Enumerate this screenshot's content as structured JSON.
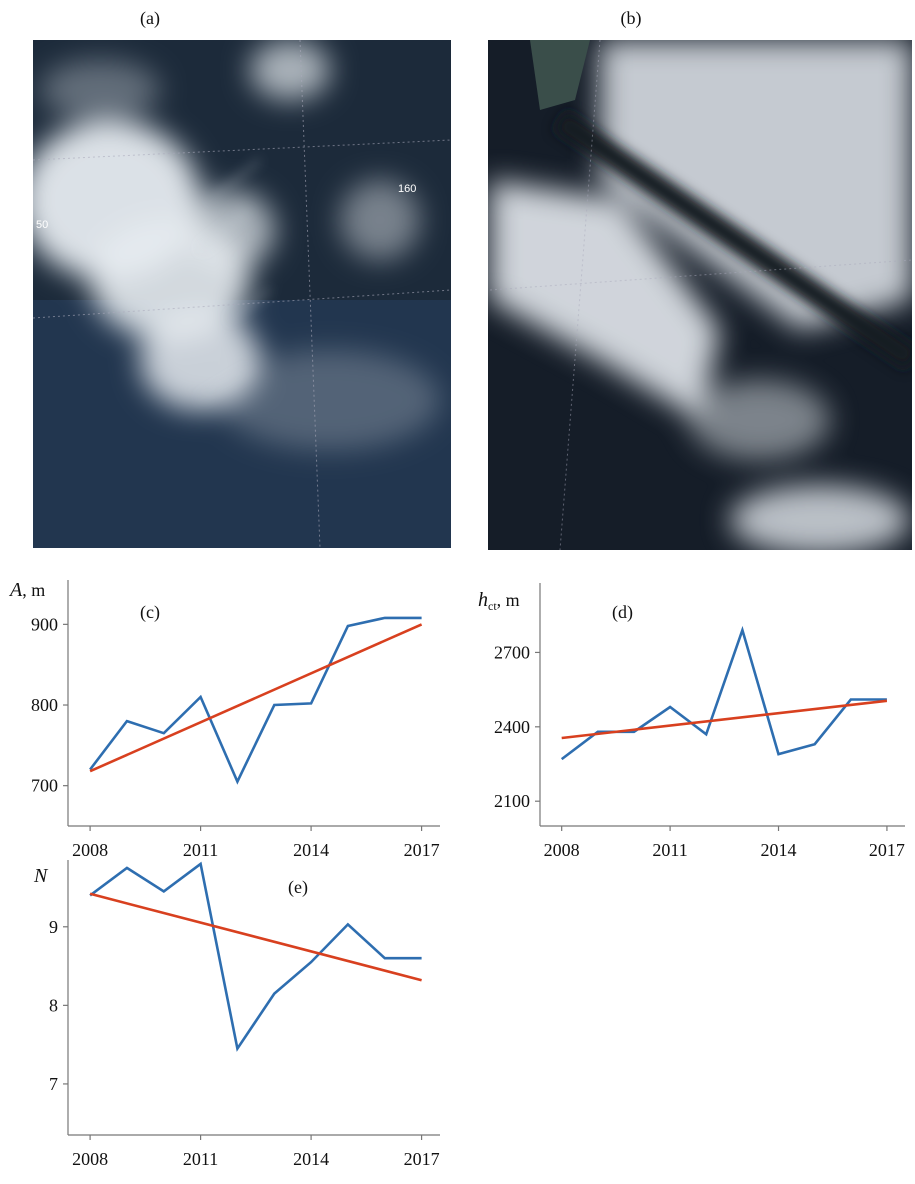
{
  "images": [
    {
      "label": "(a)",
      "annotations": [
        "50",
        "160"
      ]
    },
    {
      "label": "(b)"
    }
  ],
  "chart_data": [
    {
      "type": "line",
      "annotation": "(c)",
      "ylabel": {
        "symbol": "A",
        "unit": ", m"
      },
      "x": [
        2008,
        2009,
        2010,
        2011,
        2012,
        2013,
        2014,
        2015,
        2016,
        2017
      ],
      "series": [
        {
          "color": "#2e6eb0",
          "values": [
            720,
            780,
            765,
            810,
            705,
            800,
            802,
            898,
            908,
            908
          ]
        },
        {
          "color": "#d8401f",
          "values": [
            718,
            null,
            null,
            null,
            null,
            null,
            null,
            null,
            null,
            900
          ]
        }
      ],
      "xlim": [
        2007.4,
        2017.5
      ],
      "xticks": [
        2008,
        2011,
        2014,
        2017
      ],
      "ylim": [
        650,
        955
      ],
      "yticks": [
        700,
        800,
        900
      ]
    },
    {
      "type": "line",
      "annotation": "(d)",
      "ylabel": {
        "symbol": "h",
        "subscript": "ct",
        "unit": ", m"
      },
      "x": [
        2008,
        2009,
        2010,
        2011,
        2012,
        2013,
        2014,
        2015,
        2016,
        2017
      ],
      "series": [
        {
          "color": "#2e6eb0",
          "values": [
            2270,
            2380,
            2380,
            2480,
            2370,
            2790,
            2290,
            2330,
            2510,
            2510
          ]
        },
        {
          "color": "#d8401f",
          "values": [
            2355,
            null,
            null,
            null,
            null,
            null,
            null,
            null,
            null,
            2505
          ]
        }
      ],
      "xlim": [
        2007.4,
        2017.5
      ],
      "xticks": [
        2008,
        2011,
        2014,
        2017
      ],
      "ylim": [
        2000,
        2980
      ],
      "yticks": [
        2100,
        2400,
        2700
      ]
    },
    {
      "type": "line",
      "annotation": "(e)",
      "ylabel": {
        "symbol": "N"
      },
      "x": [
        2008,
        2009,
        2010,
        2011,
        2012,
        2013,
        2014,
        2015,
        2016,
        2017
      ],
      "series": [
        {
          "color": "#2e6eb0",
          "values": [
            9.4,
            9.75,
            9.45,
            9.8,
            7.45,
            8.15,
            8.55,
            9.03,
            8.6,
            8.6
          ]
        },
        {
          "color": "#d8401f",
          "values": [
            9.42,
            null,
            null,
            null,
            null,
            null,
            null,
            null,
            null,
            8.32
          ]
        }
      ],
      "xlim": [
        2007.4,
        2017.5
      ],
      "xticks": [
        2008,
        2011,
        2014,
        2017
      ],
      "ylim": [
        6.35,
        9.85
      ],
      "yticks": [
        7,
        8,
        9
      ]
    }
  ]
}
